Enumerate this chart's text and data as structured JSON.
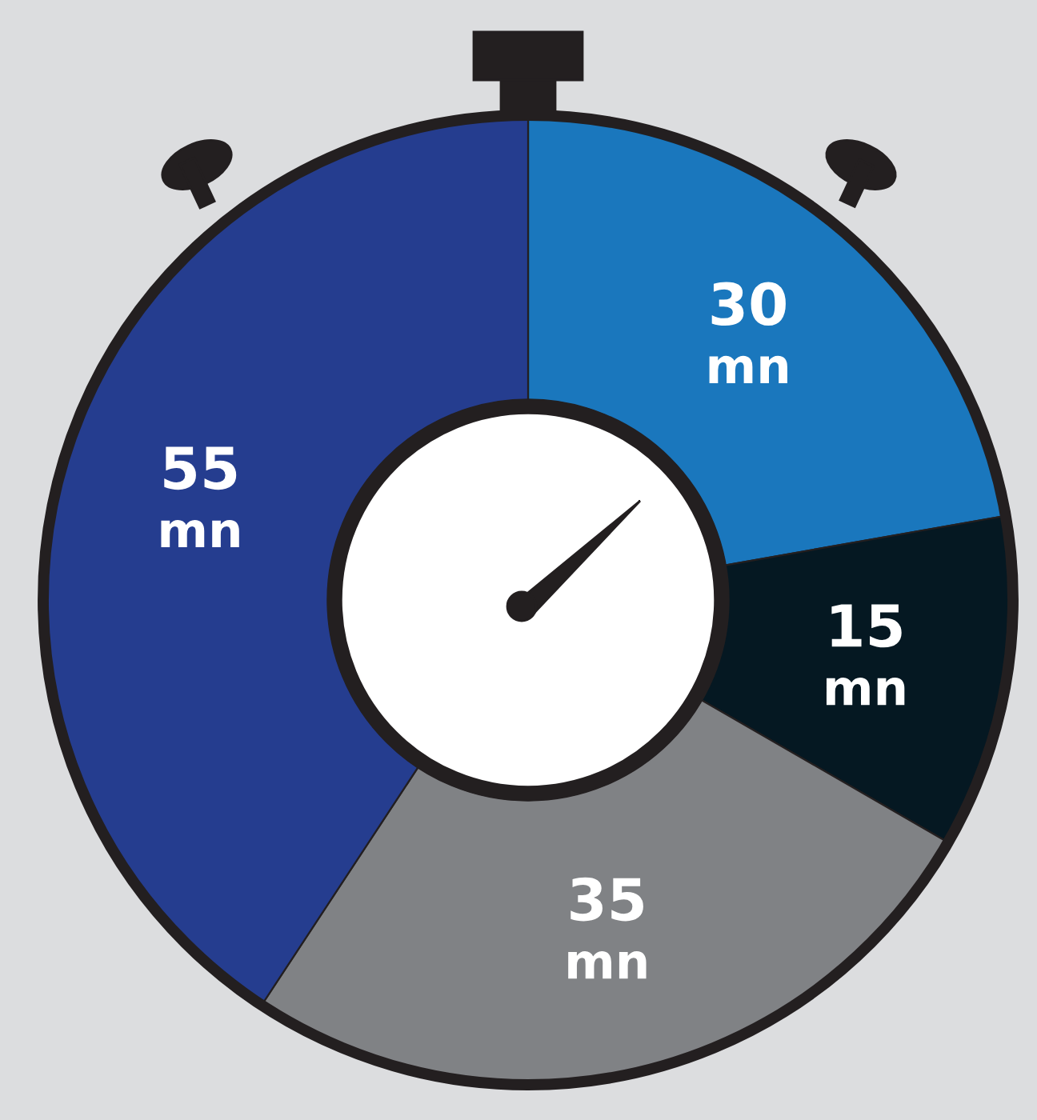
{
  "chart_data": {
    "type": "donut",
    "categories": [
      null,
      null,
      null,
      null
    ],
    "values": [
      30,
      15,
      35,
      55
    ],
    "colors": [
      "#1a77bd",
      "#051822",
      "#808285",
      "#253d8f"
    ],
    "data_labels": true,
    "annotations": [
      "mn",
      "mn",
      "mn",
      "mn"
    ]
  }
}
